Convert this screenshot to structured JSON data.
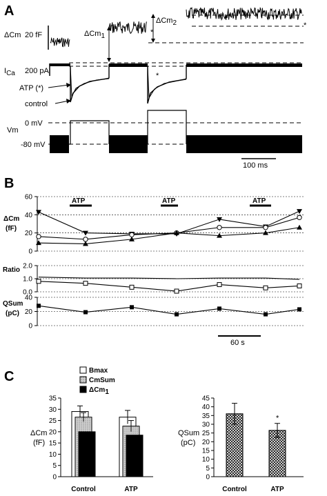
{
  "panels": {
    "A": {
      "letter": "A",
      "labels": {
        "dcm": "ΔCm",
        "dcm_scale": "20 fF",
        "ica": "I",
        "ica_sub": "Ca",
        "ica_scale": "200 pA",
        "atp": "ATP (*)",
        "control": "control",
        "vm": "Vm",
        "zero_mv": "0 mV",
        "minus80": "-80 mV",
        "timebar": "100 ms",
        "dcm1": "ΔCm",
        "dcm1_sub": "1",
        "dcm2": "ΔCm",
        "dcm2_sub": "2",
        "star": "*"
      }
    },
    "B": {
      "letter": "B",
      "timebar": "60 s",
      "atp_label": "ATP",
      "y_labels": {
        "dcm_line1": "ΔCm",
        "dcm_line2": "(fF)",
        "ratio": "Ratio",
        "qsum_line1": "QSum",
        "qsum_line2": "(pC)"
      }
    },
    "C": {
      "letter": "C",
      "legend": [
        {
          "label": "Bmax",
          "fill": "open"
        },
        {
          "label": "CmSum",
          "fill": "gray"
        },
        {
          "label": "ΔCm",
          "sub": "1",
          "fill": "black"
        }
      ],
      "left_ylabel_line1": "ΔCm",
      "left_ylabel_line2": "(fF)",
      "right_ylabel_line1": "QSum",
      "right_ylabel_line2": "(pC)",
      "star": "*"
    }
  },
  "chart_data": [
    {
      "type": "line",
      "panel": "B",
      "ylabel": "ΔCm (fF)",
      "ylim": [
        0,
        60
      ],
      "yticks": [
        0,
        20,
        40,
        60
      ],
      "x": [
        0,
        1,
        2,
        3,
        4,
        5,
        6
      ],
      "grid": true,
      "series": [
        {
          "marker": "triangle-down",
          "values": [
            43,
            20,
            19,
            19,
            35,
            27,
            44
          ]
        },
        {
          "marker": "circle-open",
          "values": [
            16,
            13,
            18,
            20,
            26,
            26,
            37
          ]
        },
        {
          "marker": "triangle-up",
          "values": [
            9,
            8,
            13,
            20,
            17,
            20,
            26
          ]
        }
      ]
    },
    {
      "type": "line",
      "panel": "B",
      "ylabel": "Ratio",
      "ylim": [
        0,
        2
      ],
      "yticks": [
        0.0,
        1.0,
        2.0
      ],
      "yticklabels": [
        "0.0",
        "1.0",
        "2.0"
      ],
      "x": [
        0,
        1,
        2,
        3,
        4,
        5,
        6
      ],
      "grid": true,
      "series": [
        {
          "marker": "none",
          "values": [
            1.12,
            1.05,
            1.05,
            1.0,
            1.05,
            1.05,
            0.95
          ]
        },
        {
          "marker": "square-open",
          "values": [
            0.8,
            0.65,
            0.35,
            0.05,
            0.55,
            0.3,
            0.45
          ]
        }
      ]
    },
    {
      "type": "line",
      "panel": "B",
      "ylabel": "QSum (pC)",
      "ylim": [
        0,
        40
      ],
      "yticks": [
        0,
        20,
        40
      ],
      "x": [
        0,
        1,
        2,
        3,
        4,
        5,
        6
      ],
      "grid": true,
      "series": [
        {
          "marker": "square-filled",
          "values": [
            28,
            19,
            26,
            16,
            24,
            16,
            23
          ]
        }
      ]
    },
    {
      "type": "bar",
      "panel": "C",
      "ylabel": "ΔCm (fF)",
      "ylim": [
        0,
        35
      ],
      "yticks": [
        0,
        5,
        10,
        15,
        20,
        25,
        30,
        35
      ],
      "categories": [
        "Control",
        "ATP"
      ],
      "series": [
        {
          "name": "Bmax",
          "values": [
            29,
            26.5
          ],
          "errors": [
            2.5,
            3
          ]
        },
        {
          "name": "CmSum",
          "values": [
            26.5,
            22.5
          ],
          "errors": [
            2,
            2.5
          ]
        },
        {
          "name": "ΔCm1",
          "values": [
            20,
            18.5
          ],
          "errors": [
            0,
            0
          ]
        }
      ]
    },
    {
      "type": "bar",
      "panel": "C",
      "ylabel": "QSum (pC)",
      "ylim": [
        0,
        45
      ],
      "yticks": [
        0,
        5,
        10,
        15,
        20,
        25,
        30,
        35,
        40,
        45
      ],
      "categories": [
        "Control",
        "ATP"
      ],
      "series": [
        {
          "values": [
            36,
            26.5
          ],
          "errors": [
            6,
            4
          ]
        }
      ]
    }
  ]
}
